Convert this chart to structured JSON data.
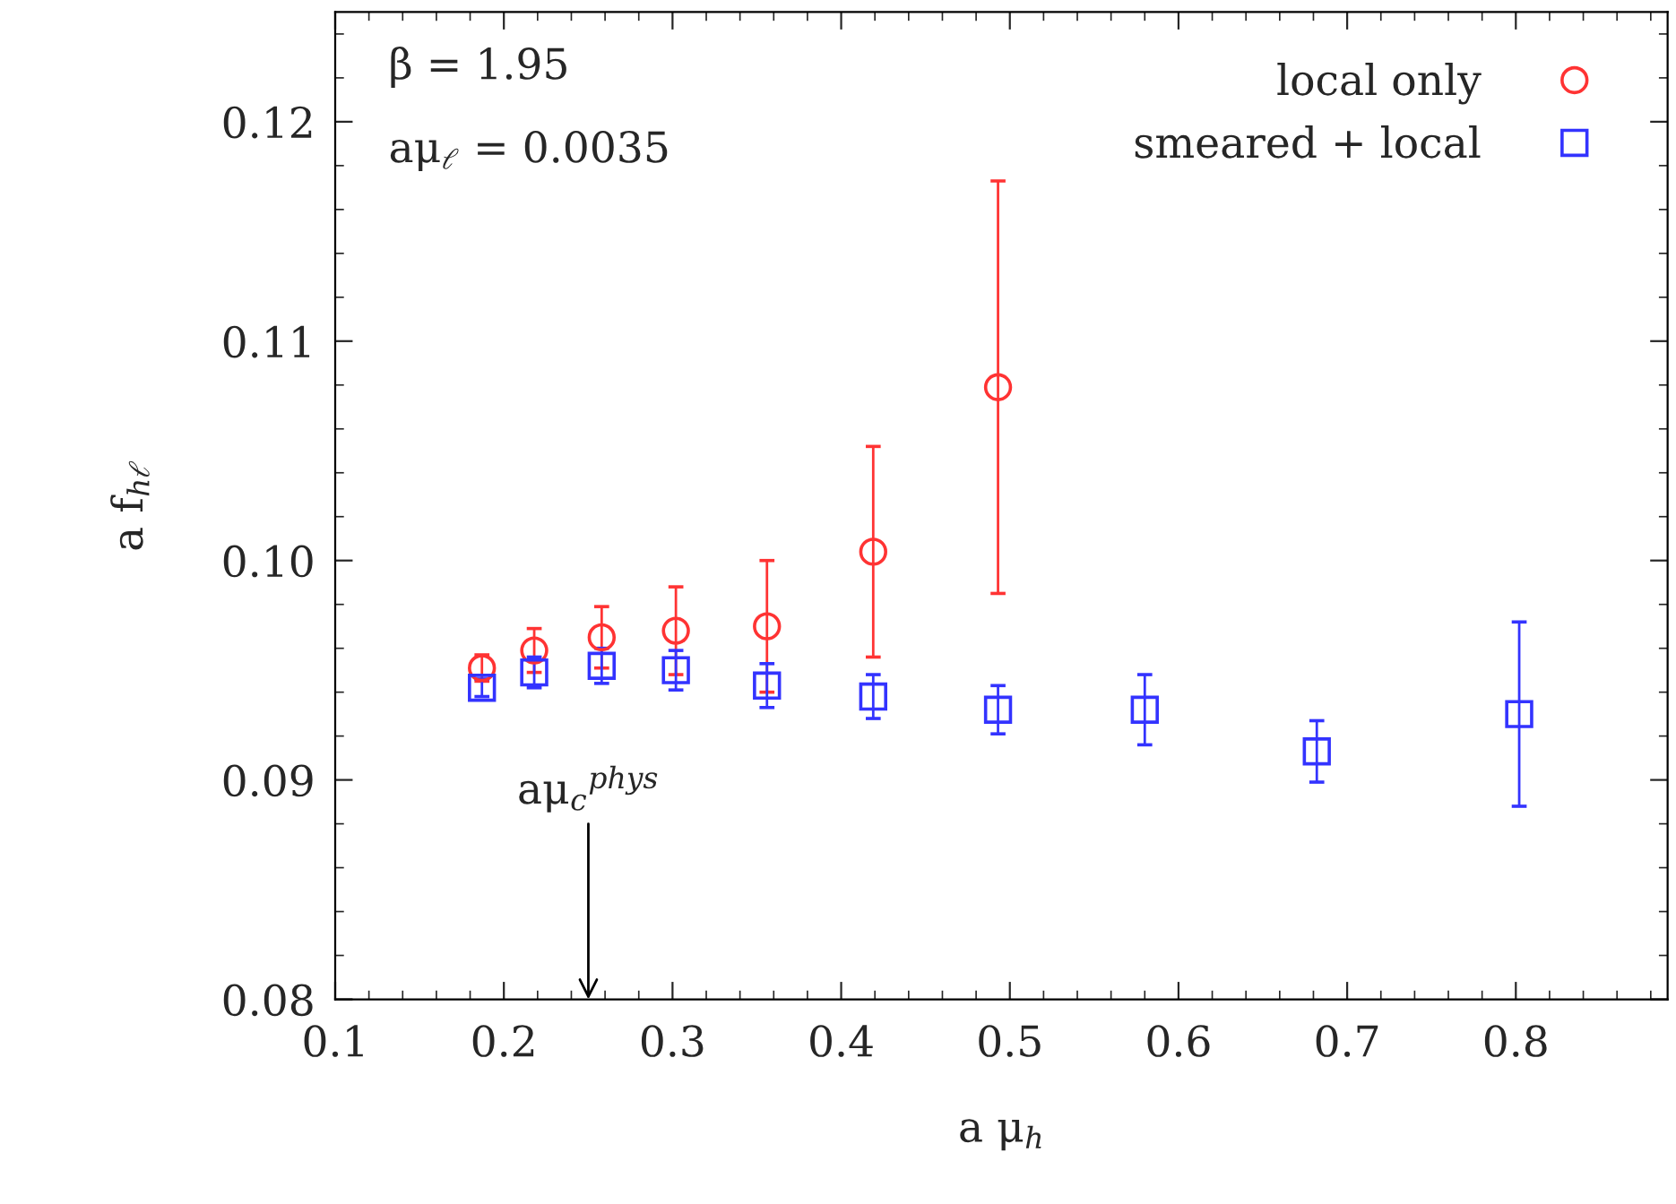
{
  "chart_data": {
    "type": "scatter",
    "xlabel": "a μ$_{h}$",
    "ylabel": "a f$_{hℓ}$",
    "xlim": [
      0.1,
      0.89
    ],
    "ylim": [
      0.08,
      0.125
    ],
    "xticks": [
      0.1,
      0.2,
      0.3,
      0.4,
      0.5,
      0.6,
      0.7,
      0.8
    ],
    "yticks": [
      {
        "value": 0.08,
        "label": "0.08"
      },
      {
        "value": 0.09,
        "label": "0.09"
      },
      {
        "value": 0.1,
        "label": "0.10"
      },
      {
        "value": 0.11,
        "label": "0.11"
      },
      {
        "value": 0.12,
        "label": "0.12"
      }
    ],
    "legend": "top right",
    "grid": false,
    "series": [
      {
        "name": "local only",
        "color": "#ff3333",
        "marker": "circle",
        "x": [
          0.187,
          0.218,
          0.258,
          0.302,
          0.356,
          0.419,
          0.493
        ],
        "values": [
          0.0951,
          0.0959,
          0.0965,
          0.0968,
          0.097,
          0.1004,
          0.1079
        ],
        "errors": [
          0.0006,
          0.001,
          0.0014,
          0.002,
          0.003,
          0.0048,
          0.0094
        ]
      },
      {
        "name": "smeared + local",
        "color": "#3333ff",
        "marker": "square",
        "x": [
          0.187,
          0.218,
          0.258,
          0.302,
          0.356,
          0.419,
          0.493,
          0.58,
          0.682,
          0.802
        ],
        "values": [
          0.0942,
          0.0949,
          0.0952,
          0.095,
          0.0943,
          0.0938,
          0.0932,
          0.0932,
          0.0913,
          0.093
        ],
        "errors": [
          0.0004,
          0.0007,
          0.0008,
          0.0009,
          0.001,
          0.001,
          0.0011,
          0.0016,
          0.0014,
          0.0042
        ]
      }
    ],
    "annotations": [
      "β = 1.95",
      "aμ$_{ℓ}$ = 0.0035",
      "aμ$_{c}$$^{phys}$"
    ]
  }
}
